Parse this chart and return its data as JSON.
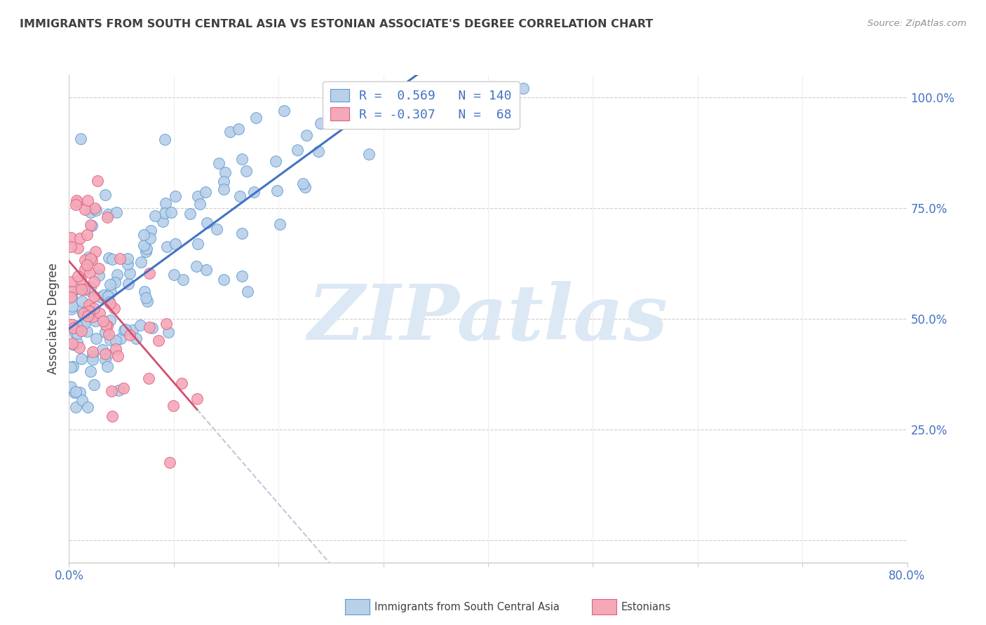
{
  "title": "IMMIGRANTS FROM SOUTH CENTRAL ASIA VS ESTONIAN ASSOCIATE'S DEGREE CORRELATION CHART",
  "source": "Source: ZipAtlas.com",
  "ylabel": "Associate's Degree",
  "watermark": "ZIPatlas",
  "blue_R": 0.569,
  "blue_N": 140,
  "pink_R": -0.307,
  "pink_N": 68,
  "blue_fill_color": "#b8d0e8",
  "blue_edge_color": "#5b9bd5",
  "pink_fill_color": "#f4a8b8",
  "pink_edge_color": "#e06080",
  "blue_line_color": "#4472c4",
  "pink_line_color": "#d05070",
  "pink_dash_color": "#c0c8d8",
  "title_color": "#404040",
  "source_color": "#909090",
  "axis_label_color": "#4472c4",
  "watermark_color": "#dde8f5",
  "legend_text_color": "#4472c4",
  "legend_border_color": "#cccccc",
  "background_color": "#ffffff",
  "xlim": [
    0.0,
    0.8
  ],
  "ylim": [
    -0.05,
    1.05
  ],
  "x_ticks": [
    0.0,
    0.1,
    0.2,
    0.3,
    0.4,
    0.5,
    0.6,
    0.7,
    0.8
  ],
  "y_ticks": [
    0.0,
    0.25,
    0.5,
    0.75,
    1.0
  ],
  "y_tick_labels": [
    "",
    "25.0%",
    "50.0%",
    "75.0%",
    "100.0%"
  ],
  "blue_seed": 42,
  "pink_seed": 7
}
